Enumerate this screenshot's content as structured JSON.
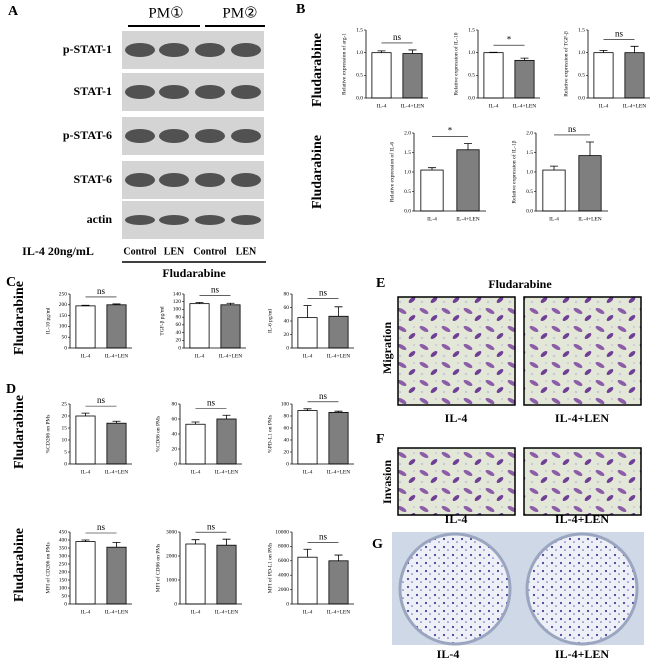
{
  "figure": {
    "a": {
      "letter": "A",
      "groups": [
        "PM①",
        "PM②"
      ],
      "rows": [
        "p-STAT-1",
        "STAT-1",
        "p-STAT-6",
        "STAT-6",
        "actin"
      ],
      "treatment": "IL-4 20ng/mL",
      "lanes": [
        "Control",
        "LEN",
        "Control",
        "LEN"
      ],
      "caption": "Fludarabine"
    },
    "b": {
      "letter": "B",
      "row_labels": [
        "Fludarabine",
        "Fludarabine"
      ]
    },
    "c": {
      "letter": "C",
      "row_label": "Fludarabine"
    },
    "d": {
      "letter": "D",
      "row_labels": [
        "Fludarabine",
        "Fludarabine"
      ]
    },
    "e": {
      "letter": "E",
      "title": "Fludarabine",
      "row_label": "Migration",
      "labels": [
        "IL-4",
        "IL-4+LEN"
      ]
    },
    "f": {
      "letter": "F",
      "row_label": "Invasion",
      "labels": [
        "IL-4",
        "IL-4+LEN"
      ]
    },
    "g": {
      "letter": "G",
      "labels": [
        "IL-4",
        "IL-4+LEN"
      ]
    }
  },
  "chart_data": [
    {
      "type": "bar",
      "ylabel": "Relative expression of arg-1",
      "categories": [
        "IL-4",
        "IL-4+LEN"
      ],
      "values": [
        1.0,
        0.98
      ],
      "errors": [
        0.04,
        0.08
      ],
      "colors": [
        "#ffffff",
        "#7f7f7f"
      ],
      "annotation": "ns",
      "ylim": [
        0,
        1.5
      ],
      "yticks": [
        {
          "value": 0,
          "label": "0.0"
        },
        0.5,
        {
          "value": 1,
          "label": "1.0"
        },
        1.5
      ]
    },
    {
      "type": "bar",
      "ylabel": "Relative expression of IL-10",
      "categories": [
        "IL-4",
        "IL-4+LEN"
      ],
      "values": [
        1.0,
        0.83
      ],
      "errors": [
        0.01,
        0.05
      ],
      "colors": [
        "#ffffff",
        "#7f7f7f"
      ],
      "annotation": "*",
      "ylim": [
        0,
        1.5
      ],
      "yticks": [
        {
          "value": 0,
          "label": "0.0"
        },
        0.5,
        {
          "value": 1,
          "label": "1.0"
        },
        1.5
      ]
    },
    {
      "type": "bar",
      "ylabel": "Relative expression of TGF-β",
      "categories": [
        "IL-4",
        "IL-4+LEN"
      ],
      "values": [
        1.0,
        1.0
      ],
      "errors": [
        0.05,
        0.14
      ],
      "colors": [
        "#ffffff",
        "#7f7f7f"
      ],
      "annotation": "ns",
      "ylim": [
        0,
        1.5
      ],
      "yticks": [
        {
          "value": 0,
          "label": "0.0"
        },
        0.5,
        {
          "value": 1,
          "label": "1.0"
        },
        1.5
      ]
    },
    {
      "type": "bar",
      "ylabel": "Relative expression of IL-6",
      "categories": [
        "IL-4",
        "IL-4+LEN"
      ],
      "values": [
        1.05,
        1.57
      ],
      "errors": [
        0.06,
        0.16
      ],
      "colors": [
        "#ffffff",
        "#7f7f7f"
      ],
      "annotation": "*",
      "ylim": [
        0,
        2
      ],
      "yticks": [
        {
          "value": 0,
          "label": "0.0"
        },
        0.5,
        {
          "value": 1,
          "label": "1.0"
        },
        1.5,
        {
          "value": 2,
          "label": "2.0"
        }
      ]
    },
    {
      "type": "bar",
      "ylabel": "Relative expression of IL-1β",
      "categories": [
        "IL-4",
        "IL-4+LEN"
      ],
      "values": [
        1.05,
        1.42
      ],
      "errors": [
        0.1,
        0.35
      ],
      "colors": [
        "#ffffff",
        "#7f7f7f"
      ],
      "annotation": "ns",
      "ylim": [
        0,
        2
      ],
      "yticks": [
        {
          "value": 0,
          "label": "0.0"
        },
        0.5,
        {
          "value": 1,
          "label": "1.0"
        },
        1.5,
        {
          "value": 2,
          "label": "2.0"
        }
      ]
    },
    {
      "type": "bar",
      "ylabel": "IL-10 pg/ml",
      "categories": [
        "IL-4",
        "IL-4+LEN"
      ],
      "values": [
        195,
        200
      ],
      "errors": [
        3,
        4
      ],
      "colors": [
        "#ffffff",
        "#7f7f7f"
      ],
      "annotation": "ns",
      "ylim": [
        0,
        250
      ],
      "yticks": [
        0,
        50,
        100,
        150,
        200,
        250
      ]
    },
    {
      "type": "bar",
      "ylabel": "TGF-β pg/ml",
      "categories": [
        "IL-4",
        "IL-4+LEN"
      ],
      "values": [
        115,
        112
      ],
      "errors": [
        3,
        4
      ],
      "colors": [
        "#ffffff",
        "#7f7f7f"
      ],
      "annotation": "ns",
      "ylim": [
        0,
        140
      ],
      "yticks": [
        0,
        20,
        40,
        60,
        80,
        100,
        120,
        140
      ]
    },
    {
      "type": "bar",
      "ylabel": "IL-6 pg/ml",
      "categories": [
        "IL-4",
        "IL-4+LEN"
      ],
      "values": [
        45,
        47
      ],
      "errors": [
        18,
        14
      ],
      "colors": [
        "#ffffff",
        "#7f7f7f"
      ],
      "annotation": "ns",
      "ylim": [
        0,
        80
      ],
      "yticks": [
        0,
        20,
        40,
        60,
        80
      ]
    },
    {
      "type": "bar",
      "ylabel": "%CD206 on PMs",
      "categories": [
        "IL-4",
        "IL-4+LEN"
      ],
      "values": [
        20,
        17
      ],
      "errors": [
        1.2,
        0.8
      ],
      "colors": [
        "#ffffff",
        "#7f7f7f"
      ],
      "annotation": "ns",
      "ylim": [
        0,
        25
      ],
      "yticks": [
        0,
        5,
        10,
        15,
        20,
        25
      ]
    },
    {
      "type": "bar",
      "ylabel": "%CD86 on PMs",
      "categories": [
        "IL-4",
        "IL-4+LEN"
      ],
      "values": [
        53,
        60
      ],
      "errors": [
        3,
        5
      ],
      "colors": [
        "#ffffff",
        "#7f7f7f"
      ],
      "annotation": "ns",
      "ylim": [
        0,
        80
      ],
      "yticks": [
        0,
        20,
        40,
        60,
        80
      ]
    },
    {
      "type": "bar",
      "ylabel": "%PD-L1 on PMs",
      "categories": [
        "IL-4",
        "IL-4+LEN"
      ],
      "values": [
        89,
        86
      ],
      "errors": [
        3,
        2
      ],
      "colors": [
        "#ffffff",
        "#7f7f7f"
      ],
      "annotation": "ns",
      "ylim": [
        0,
        100
      ],
      "yticks": [
        0,
        20,
        40,
        60,
        80,
        100
      ]
    },
    {
      "type": "bar",
      "ylabel": "MFI of CD206 on PMs",
      "categories": [
        "IL-4",
        "IL-4+LEN"
      ],
      "values": [
        390,
        355
      ],
      "errors": [
        10,
        30
      ],
      "colors": [
        "#ffffff",
        "#7f7f7f"
      ],
      "annotation": "ns",
      "ylim": [
        0,
        450
      ],
      "yticks": [
        0,
        50,
        100,
        150,
        200,
        250,
        300,
        350,
        400,
        450
      ]
    },
    {
      "type": "bar",
      "ylabel": "MFI of CD86 on PMs",
      "categories": [
        "IL-4",
        "IL-4+LEN"
      ],
      "values": [
        2500,
        2450
      ],
      "errors": [
        180,
        250
      ],
      "colors": [
        "#ffffff",
        "#7f7f7f"
      ],
      "annotation": "ns",
      "ylim": [
        0,
        3000
      ],
      "yticks": [
        0,
        1000,
        2000,
        3000
      ]
    },
    {
      "type": "bar",
      "ylabel": "MFI of PD-L1 on PMs",
      "categories": [
        "IL-4",
        "IL-4+LEN"
      ],
      "values": [
        6500,
        6000
      ],
      "errors": [
        1100,
        800
      ],
      "colors": [
        "#ffffff",
        "#7f7f7f"
      ],
      "annotation": "ns",
      "ylim": [
        0,
        10000
      ],
      "yticks": [
        0,
        2000,
        4000,
        6000,
        8000,
        10000
      ]
    }
  ]
}
